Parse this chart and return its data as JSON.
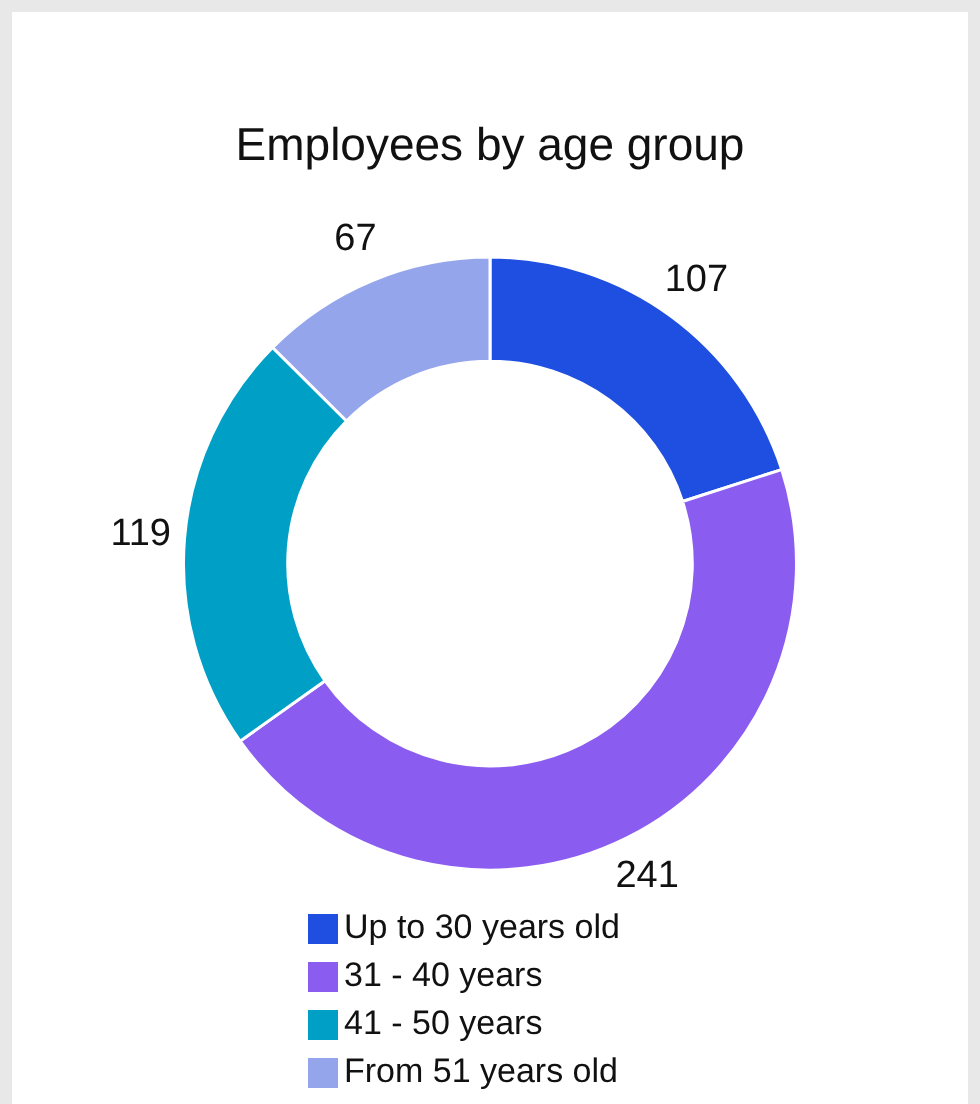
{
  "chart_data": {
    "type": "donut",
    "title": "Employees by age group",
    "categories": [
      "Up to 30 years old",
      "31 - 40 years",
      "41 - 50 years",
      "From 51 years old"
    ],
    "values": [
      107,
      241,
      119,
      67
    ],
    "colors": [
      "#1f4fe0",
      "#8b5cf0",
      "#00a0c6",
      "#95a5ec"
    ],
    "data_labels": true,
    "legend": "bottom"
  }
}
